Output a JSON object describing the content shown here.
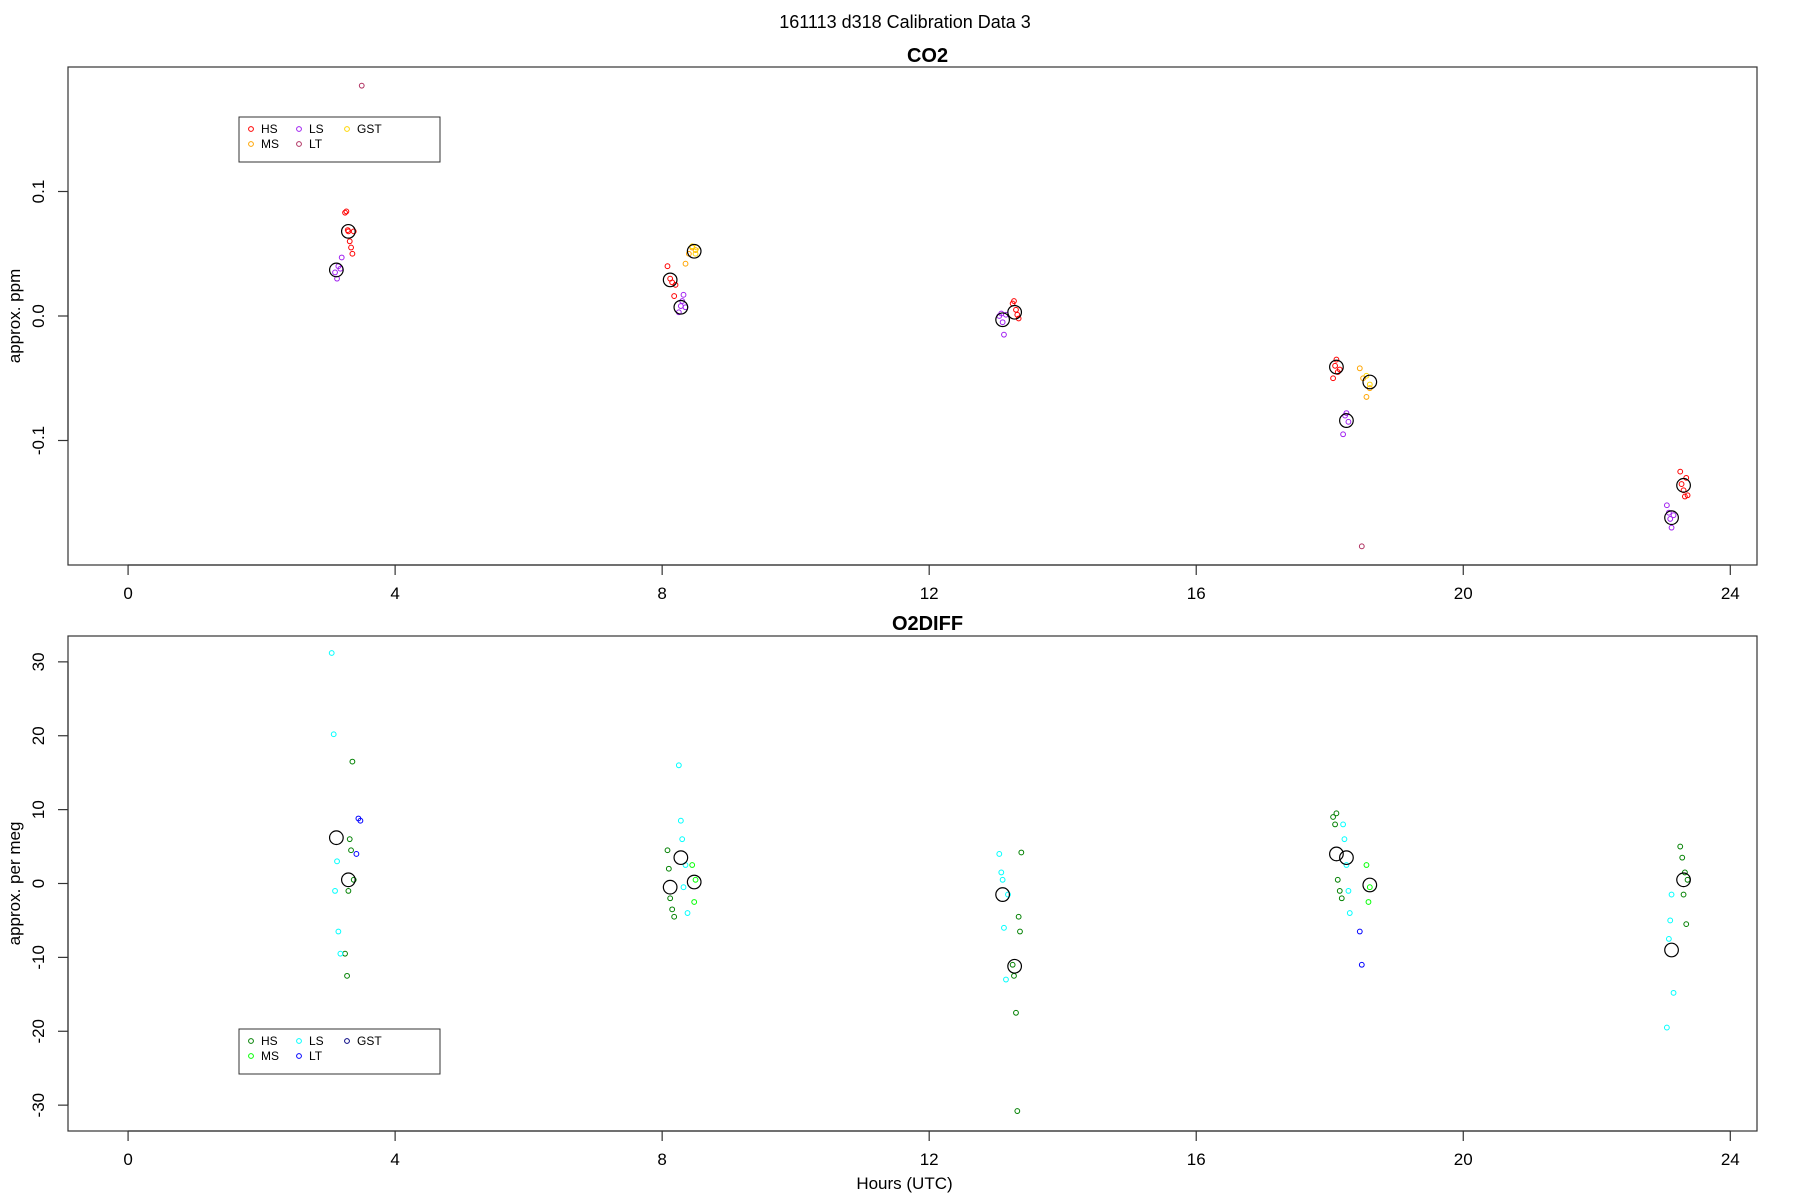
{
  "page_title": "161113   d318   Calibration Data 3",
  "chart_data": [
    {
      "type": "scatter",
      "title": "CO2",
      "xlabel": "",
      "ylabel": "approx. ppm",
      "xlim": [
        -0.9,
        24.4
      ],
      "ylim": [
        -0.2,
        0.2
      ],
      "xticks": [
        0,
        4,
        8,
        12,
        16,
        20,
        24
      ],
      "yticks": [
        -0.1,
        0.0,
        0.1
      ],
      "xtick_labels": [
        "0",
        "4",
        "8",
        "12",
        "16",
        "20",
        "24"
      ],
      "ytick_labels": [
        "-0.1",
        "0.0",
        "0.1"
      ],
      "legend": {
        "position": "top-left",
        "entries": [
          {
            "label": "HS",
            "color": "#ff0000"
          },
          {
            "label": "MS",
            "color": "#ffa500"
          },
          {
            "label": "LS",
            "color": "#a020f0"
          },
          {
            "label": "LT",
            "color": "#b03060"
          },
          {
            "label": "GST",
            "color": "#ffd700"
          }
        ]
      },
      "series": [
        {
          "name": "HS",
          "color": "#ff0000",
          "x": [
            3.25,
            3.27,
            3.29,
            3.3,
            3.32,
            3.34,
            3.36,
            3.38,
            8.08,
            8.12,
            8.15,
            8.18,
            8.2,
            13.25,
            13.27,
            13.3,
            13.32,
            13.34,
            18.05,
            18.08,
            18.1,
            18.12,
            18.15,
            23.25,
            23.27,
            23.3,
            23.32,
            23.34,
            23.36
          ],
          "y": [
            0.083,
            0.084,
            0.069,
            0.068,
            0.06,
            0.055,
            0.05,
            0.068,
            0.04,
            0.03,
            0.027,
            0.016,
            0.025,
            0.01,
            0.012,
            0.005,
            0.001,
            -0.002,
            -0.05,
            -0.04,
            -0.035,
            -0.045,
            -0.043,
            -0.125,
            -0.135,
            -0.14,
            -0.145,
            -0.13,
            -0.144
          ]
        },
        {
          "name": "MS",
          "color": "#ffa500",
          "x": [
            8.35,
            8.4,
            8.45,
            8.5,
            18.45,
            18.5,
            18.55,
            18.6
          ],
          "y": [
            0.042,
            0.05,
            0.055,
            0.053,
            -0.042,
            -0.05,
            -0.065,
            -0.058
          ]
        },
        {
          "name": "LS",
          "color": "#a020f0",
          "x": [
            3.1,
            3.13,
            3.15,
            3.18,
            3.2,
            8.25,
            8.28,
            8.3,
            8.32,
            8.35,
            13.05,
            13.08,
            13.1,
            13.12,
            13.15,
            18.2,
            18.23,
            18.25,
            18.28,
            23.05,
            23.08,
            23.1,
            23.12,
            23.15
          ],
          "y": [
            0.035,
            0.03,
            0.04,
            0.038,
            0.047,
            0.003,
            0.008,
            0.012,
            0.017,
            0.007,
            0.0,
            0.002,
            -0.005,
            -0.015,
            0.001,
            -0.095,
            -0.08,
            -0.078,
            -0.085,
            -0.152,
            -0.158,
            -0.163,
            -0.17,
            -0.16
          ]
        },
        {
          "name": "LT",
          "color": "#b03060",
          "x": [
            3.5,
            18.48
          ],
          "y": [
            0.185,
            -0.185
          ]
        },
        {
          "name": "GST",
          "color": "#ffd700",
          "x": [
            8.45,
            8.5,
            8.52,
            18.55,
            18.6
          ],
          "y": [
            0.056,
            0.05,
            0.055,
            -0.048,
            -0.055
          ]
        },
        {
          "name": "",
          "color": "#000000",
          "x": [
            3.3,
            3.12,
            8.12,
            8.28,
            8.48,
            13.1,
            13.28,
            18.1,
            18.25,
            18.6,
            23.3,
            23.12
          ],
          "y": [
            0.068,
            0.037,
            0.029,
            0.007,
            0.052,
            -0.003,
            0.003,
            -0.041,
            -0.084,
            -0.053,
            -0.136,
            -0.162
          ]
        }
      ]
    },
    {
      "type": "scatter",
      "title": "O2DIFF",
      "xlabel": "Hours (UTC)",
      "ylabel": "approx. per meg",
      "xlim": [
        -0.9,
        24.4
      ],
      "ylim": [
        -33.5,
        33.5
      ],
      "xticks": [
        0,
        4,
        8,
        12,
        16,
        20,
        24
      ],
      "yticks": [
        -30,
        -20,
        -10,
        0,
        10,
        20,
        30
      ],
      "xtick_labels": [
        "0",
        "4",
        "8",
        "12",
        "16",
        "20",
        "24"
      ],
      "ytick_labels": [
        "-30",
        "-20",
        "-10",
        "0",
        "10",
        "20",
        "30"
      ],
      "legend": {
        "position": "bottom-left",
        "entries": [
          {
            "label": "HS",
            "color": "#008000"
          },
          {
            "label": "MS",
            "color": "#00ff00"
          },
          {
            "label": "LS",
            "color": "#00ffff"
          },
          {
            "label": "LT",
            "color": "#0000ff"
          },
          {
            "label": "GST",
            "color": "#000080"
          }
        ]
      },
      "series": [
        {
          "name": "HS",
          "color": "#008000",
          "x": [
            3.25,
            3.28,
            3.3,
            3.32,
            3.34,
            3.36,
            3.38,
            8.08,
            8.1,
            8.12,
            8.15,
            8.18,
            13.25,
            13.27,
            13.3,
            13.32,
            13.34,
            13.36,
            13.38,
            18.05,
            18.08,
            18.1,
            18.12,
            18.15,
            18.18,
            23.25,
            23.28,
            23.3,
            23.32,
            23.34,
            23.36
          ],
          "y": [
            -9.5,
            -12.5,
            -1.0,
            6.0,
            4.5,
            16.5,
            0.5,
            4.5,
            2.0,
            -2.0,
            -3.5,
            -4.5,
            -11.0,
            -12.5,
            -17.5,
            -30.8,
            -4.5,
            -6.5,
            4.2,
            9.0,
            8.0,
            9.5,
            0.5,
            -1.0,
            -2.0,
            5.0,
            3.5,
            -1.5,
            1.5,
            -5.5,
            0.5
          ]
        },
        {
          "name": "MS",
          "color": "#00ff00",
          "x": [
            8.45,
            8.48,
            8.5,
            18.55,
            18.58,
            18.6
          ],
          "y": [
            2.5,
            -2.5,
            0.5,
            2.5,
            -2.5,
            -0.5
          ]
        },
        {
          "name": "LS",
          "color": "#00ffff",
          "x": [
            3.05,
            3.08,
            3.1,
            3.13,
            3.15,
            3.18,
            8.25,
            8.28,
            8.3,
            8.32,
            8.35,
            8.38,
            13.05,
            13.08,
            13.1,
            13.12,
            13.15,
            13.18,
            18.2,
            18.22,
            18.25,
            18.28,
            18.3,
            23.05,
            23.08,
            23.1,
            23.12,
            23.15
          ],
          "y": [
            31.2,
            20.2,
            -1.0,
            3.0,
            -6.5,
            -9.5,
            16.0,
            8.5,
            6.0,
            -0.5,
            2.5,
            -4.0,
            4.0,
            1.5,
            0.5,
            -6.0,
            -13.0,
            -1.5,
            8.0,
            6.0,
            2.5,
            -1.0,
            -4.0,
            -19.5,
            -7.5,
            -5.0,
            -1.5,
            -14.8
          ]
        },
        {
          "name": "LT",
          "color": "#0000ff",
          "x": [
            3.45,
            3.48,
            3.42,
            18.45,
            18.48
          ],
          "y": [
            8.8,
            8.5,
            4.0,
            -6.5,
            -11.0
          ]
        },
        {
          "name": "",
          "color": "#000000",
          "x": [
            3.12,
            3.3,
            8.12,
            8.28,
            8.48,
            13.1,
            13.28,
            18.1,
            18.25,
            18.6,
            23.3,
            23.12
          ],
          "y": [
            6.2,
            0.5,
            -0.5,
            3.5,
            0.2,
            -1.5,
            -11.2,
            4.0,
            3.5,
            -0.2,
            0.5,
            -9.0
          ]
        }
      ]
    }
  ]
}
